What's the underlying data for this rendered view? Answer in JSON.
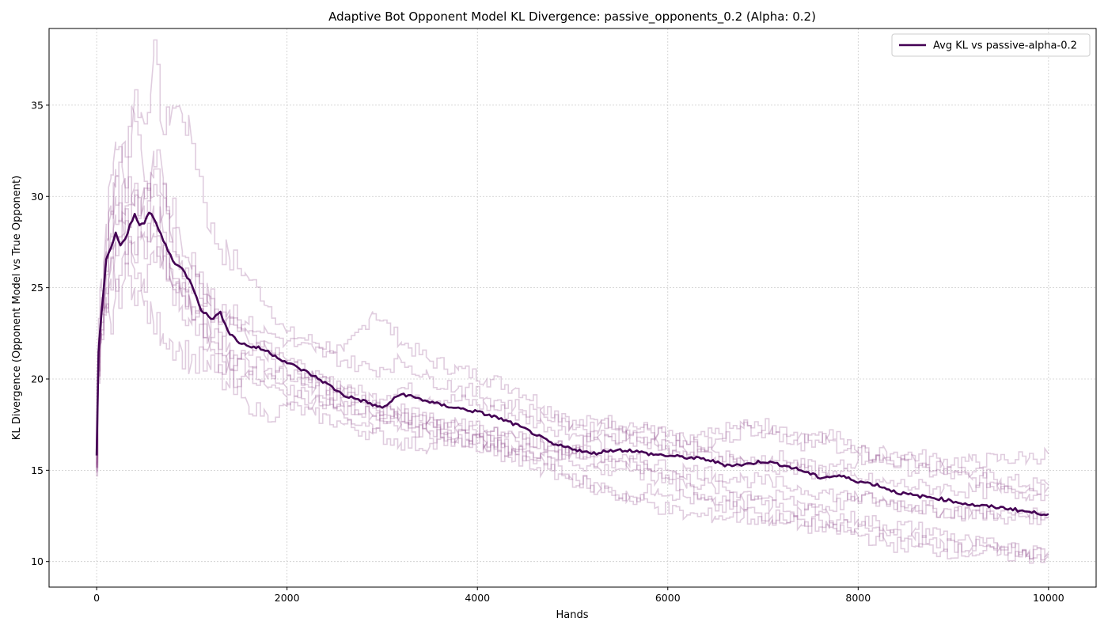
{
  "chart_data": {
    "type": "line",
    "title": "Adaptive Bot Opponent Model KL Divergence: passive_opponents_0.2 (Alpha: 0.2)",
    "xlabel": "Hands",
    "ylabel": "KL Divergence (Opponent Model vs True Opponent)",
    "xlim": [
      -500,
      10500
    ],
    "ylim": [
      8.6,
      39.2
    ],
    "xticks": [
      0,
      2000,
      4000,
      6000,
      8000,
      10000
    ],
    "yticks": [
      10,
      15,
      20,
      25,
      30,
      35
    ],
    "grid": true,
    "legend_position": "top-right",
    "colors": {
      "average": "#440154",
      "runs": "#8e4a8c"
    },
    "series": [
      {
        "name": "Avg KL vs passive-alpha-0.2",
        "role": "average",
        "x": [
          0,
          20,
          50,
          100,
          150,
          200,
          250,
          300,
          350,
          400,
          450,
          500,
          550,
          600,
          650,
          700,
          800,
          900,
          1000,
          1100,
          1200,
          1300,
          1400,
          1500,
          1600,
          1700,
          1800,
          1900,
          2000,
          2200,
          2400,
          2600,
          2800,
          3000,
          3200,
          3400,
          3600,
          3800,
          4000,
          4200,
          4400,
          4600,
          4800,
          5000,
          5200,
          5400,
          5600,
          5800,
          6000,
          6200,
          6400,
          6600,
          6800,
          7000,
          7200,
          7400,
          7600,
          7800,
          8000,
          8200,
          8400,
          8600,
          8800,
          9000,
          9200,
          9400,
          9600,
          9800,
          10000
        ],
        "y": [
          15.9,
          21.5,
          23.5,
          26.5,
          27.2,
          28.0,
          27.3,
          27.6,
          28.4,
          29.0,
          28.5,
          28.6,
          29.1,
          28.8,
          28.2,
          27.6,
          26.5,
          26.0,
          25.2,
          23.8,
          23.3,
          23.6,
          22.5,
          22.0,
          21.8,
          21.7,
          21.5,
          21.2,
          20.9,
          20.4,
          19.8,
          19.1,
          18.8,
          18.4,
          19.2,
          18.9,
          18.6,
          18.4,
          18.2,
          17.9,
          17.5,
          17.0,
          16.4,
          16.2,
          15.9,
          16.1,
          16.1,
          15.9,
          15.8,
          15.7,
          15.6,
          15.3,
          15.3,
          15.5,
          15.3,
          15.0,
          14.6,
          14.7,
          14.4,
          14.2,
          13.8,
          13.6,
          13.5,
          13.3,
          13.1,
          13.0,
          12.9,
          12.7,
          12.6
        ]
      },
      {
        "name": "",
        "role": "run",
        "x": [
          0,
          20,
          50,
          100,
          150,
          200,
          300,
          400,
          500,
          600,
          700,
          800,
          900,
          1000,
          1200,
          1400,
          1600,
          1800,
          2000,
          2300,
          2600,
          2900,
          3200,
          3500,
          3800,
          4100,
          4400,
          4700,
          5000,
          5300,
          5600,
          5900,
          6200,
          6500,
          6800,
          7100,
          7400,
          7700,
          8000,
          8300,
          8600,
          8900,
          9200,
          9500,
          9800,
          10000
        ],
        "y": [
          15.7,
          22.0,
          24.0,
          28.5,
          31.0,
          33.0,
          30.5,
          35.5,
          34.0,
          37.7,
          33.5,
          35.0,
          34.5,
          33.0,
          28.0,
          26.5,
          25.5,
          24.0,
          22.5,
          22.0,
          21.5,
          23.7,
          22.0,
          21.0,
          20.5,
          20.0,
          19.5,
          18.5,
          17.5,
          17.7,
          17.5,
          17.0,
          16.5,
          17.0,
          17.5,
          17.0,
          16.5,
          17.0,
          16.0,
          15.7,
          15.5,
          15.2,
          14.8,
          14.5,
          14.2,
          14.2
        ]
      },
      {
        "name": "",
        "role": "run",
        "x": [
          0,
          20,
          50,
          100,
          150,
          200,
          300,
          400,
          500,
          600,
          700,
          800,
          900,
          1000,
          1200,
          1400,
          1600,
          1800,
          2000,
          2300,
          2600,
          2900,
          3200,
          3500,
          3800,
          4100,
          4400,
          4700,
          5000,
          5300,
          5600,
          5900,
          6200,
          6500,
          6800,
          7100,
          7400,
          7700,
          8000,
          8300,
          8600,
          8900,
          9200,
          9500,
          9800,
          10000
        ],
        "y": [
          15.6,
          20.5,
          23.0,
          25.0,
          26.5,
          27.5,
          29.0,
          30.5,
          29.5,
          31.0,
          30.0,
          27.5,
          26.0,
          25.0,
          24.0,
          23.5,
          22.5,
          22.0,
          21.0,
          20.0,
          19.5,
          19.0,
          19.5,
          19.0,
          18.8,
          18.5,
          18.0,
          17.5,
          17.0,
          16.5,
          16.8,
          16.3,
          16.0,
          16.5,
          17.3,
          17.4,
          17.0,
          16.5,
          16.0,
          15.5,
          15.0,
          14.8,
          14.5,
          14.3,
          14.0,
          14.1
        ]
      },
      {
        "name": "",
        "role": "run",
        "x": [
          0,
          20,
          50,
          100,
          150,
          200,
          300,
          400,
          500,
          600,
          700,
          800,
          900,
          1000,
          1200,
          1400,
          1600,
          1800,
          2000,
          2300,
          2600,
          2900,
          3200,
          3500,
          3800,
          4100,
          4400,
          4700,
          5000,
          5300,
          5600,
          5900,
          6200,
          6500,
          6800,
          7100,
          7400,
          7700,
          8000,
          8300,
          8600,
          8900,
          9200,
          9500,
          9800,
          10000
        ],
        "y": [
          16.0,
          21.0,
          22.5,
          24.5,
          26.0,
          25.0,
          27.0,
          26.0,
          25.5,
          27.0,
          26.0,
          25.0,
          24.5,
          23.5,
          22.0,
          21.0,
          20.5,
          20.0,
          19.5,
          19.0,
          18.0,
          17.5,
          18.0,
          17.5,
          17.0,
          16.5,
          16.0,
          15.8,
          16.0,
          17.5,
          17.2,
          17.0,
          16.6,
          16.0,
          15.5,
          15.8,
          15.2,
          15.0,
          15.5,
          16.0,
          15.8,
          15.5,
          15.5,
          15.6,
          15.7,
          15.9
        ]
      },
      {
        "name": "",
        "role": "run",
        "x": [
          0,
          20,
          50,
          100,
          150,
          200,
          300,
          400,
          500,
          600,
          700,
          800,
          900,
          1000,
          1200,
          1400,
          1600,
          1800,
          2000,
          2300,
          2600,
          2900,
          3200,
          3500,
          3800,
          4100,
          4400,
          4700,
          5000,
          5300,
          5600,
          5900,
          6200,
          6500,
          6800,
          7100,
          7400,
          7700,
          8000,
          8300,
          8600,
          8900,
          9200,
          9500,
          9800,
          10000
        ],
        "y": [
          15.5,
          20.0,
          22.0,
          23.5,
          23.0,
          24.5,
          25.5,
          25.0,
          24.0,
          23.0,
          22.5,
          22.0,
          21.5,
          21.0,
          20.5,
          19.5,
          18.5,
          18.0,
          18.5,
          18.0,
          17.5,
          17.0,
          16.5,
          16.3,
          16.8,
          16.5,
          16.0,
          15.5,
          14.5,
          14.0,
          13.5,
          14.0,
          13.5,
          13.0,
          12.8,
          12.5,
          12.3,
          12.0,
          11.8,
          11.5,
          11.2,
          11.0,
          10.8,
          10.6,
          10.5,
          10.4
        ]
      },
      {
        "name": "",
        "role": "run",
        "x": [
          0,
          20,
          50,
          100,
          150,
          200,
          300,
          400,
          500,
          600,
          700,
          800,
          900,
          1000,
          1200,
          1400,
          1600,
          1800,
          2000,
          2300,
          2600,
          2900,
          3200,
          3500,
          3800,
          4100,
          4400,
          4700,
          5000,
          5300,
          5600,
          5900,
          6200,
          6500,
          6800,
          7100,
          7400,
          7700,
          8000,
          8300,
          8600,
          8900,
          9200,
          9500,
          9800,
          10000
        ],
        "y": [
          15.8,
          21.5,
          24.5,
          27.0,
          29.0,
          30.0,
          28.5,
          27.5,
          28.0,
          29.5,
          28.0,
          26.0,
          25.0,
          24.0,
          22.5,
          22.0,
          21.5,
          21.0,
          20.5,
          19.5,
          18.5,
          18.0,
          17.5,
          17.0,
          16.8,
          16.5,
          16.2,
          16.0,
          15.5,
          15.0,
          15.2,
          15.0,
          14.5,
          14.0,
          13.8,
          13.5,
          13.2,
          13.0,
          13.5,
          13.3,
          13.0,
          12.8,
          12.7,
          12.6,
          12.5,
          12.4
        ]
      },
      {
        "name": "",
        "role": "run",
        "x": [
          0,
          20,
          50,
          100,
          150,
          200,
          300,
          400,
          500,
          600,
          700,
          800,
          900,
          1000,
          1200,
          1400,
          1600,
          1800,
          2000,
          2300,
          2600,
          2900,
          3200,
          3500,
          3800,
          4100,
          4400,
          4700,
          5000,
          5300,
          5600,
          5900,
          6200,
          6500,
          6800,
          7100,
          7400,
          7700,
          8000,
          8300,
          8600,
          8900,
          9200,
          9500,
          9800,
          10000
        ],
        "y": [
          15.4,
          20.5,
          23.5,
          26.0,
          27.5,
          29.0,
          31.0,
          29.5,
          30.0,
          32.5,
          31.0,
          29.0,
          27.0,
          26.0,
          24.0,
          23.0,
          22.0,
          21.5,
          21.0,
          20.0,
          19.5,
          18.5,
          18.2,
          17.8,
          17.5,
          17.2,
          16.8,
          16.5,
          16.0,
          15.5,
          15.0,
          14.5,
          14.0,
          13.5,
          13.3,
          13.0,
          12.8,
          12.5,
          12.3,
          12.0,
          11.8,
          11.5,
          11.0,
          10.8,
          10.6,
          10.5
        ]
      },
      {
        "name": "",
        "role": "run",
        "x": [
          0,
          20,
          50,
          100,
          150,
          200,
          300,
          400,
          500,
          600,
          700,
          800,
          900,
          1000,
          1200,
          1400,
          1600,
          1800,
          2000,
          2300,
          2600,
          2900,
          3200,
          3500,
          3800,
          4100,
          4400,
          4700,
          5000,
          5300,
          5600,
          5900,
          6200,
          6500,
          6800,
          7100,
          7400,
          7700,
          8000,
          8300,
          8600,
          8900,
          9200,
          9500,
          9800,
          10000
        ],
        "y": [
          15.9,
          21.0,
          23.0,
          25.5,
          28.0,
          31.5,
          33.0,
          34.5,
          31.0,
          30.0,
          29.0,
          27.5,
          26.5,
          25.5,
          24.5,
          23.8,
          23.0,
          22.5,
          22.0,
          21.5,
          21.0,
          20.5,
          21.0,
          20.0,
          19.5,
          19.0,
          18.5,
          18.0,
          17.5,
          17.0,
          16.8,
          16.5,
          16.0,
          15.7,
          15.5,
          15.2,
          15.0,
          14.8,
          14.5,
          14.3,
          14.1,
          14.0,
          13.9,
          13.8,
          13.7,
          13.6
        ]
      },
      {
        "name": "",
        "role": "run",
        "x": [
          0,
          20,
          50,
          100,
          150,
          200,
          300,
          400,
          500,
          600,
          700,
          800,
          900,
          1000,
          1200,
          1400,
          1600,
          1800,
          2000,
          2300,
          2600,
          2900,
          3200,
          3500,
          3800,
          4100,
          4400,
          4700,
          5000,
          5300,
          5600,
          5900,
          6200,
          6500,
          6800,
          7100,
          7400,
          7700,
          8000,
          8300,
          8600,
          8900,
          9200,
          9500,
          9800,
          10000
        ],
        "y": [
          16.1,
          22.5,
          25.5,
          27.0,
          29.5,
          30.5,
          27.5,
          26.5,
          27.5,
          28.0,
          26.5,
          25.0,
          24.0,
          23.0,
          21.5,
          20.5,
          20.0,
          19.5,
          19.0,
          18.8,
          18.5,
          18.0,
          17.5,
          17.0,
          16.5,
          16.0,
          15.5,
          15.0,
          14.5,
          14.0,
          13.5,
          13.0,
          12.5,
          12.5,
          12.4,
          12.3,
          12.0,
          11.8,
          11.5,
          11.0,
          10.8,
          10.6,
          10.5,
          10.4,
          10.3,
          10.3
        ]
      },
      {
        "name": "",
        "role": "run",
        "x": [
          0,
          20,
          50,
          100,
          150,
          200,
          300,
          400,
          500,
          600,
          700,
          800,
          900,
          1000,
          1200,
          1400,
          1600,
          1800,
          2000,
          2300,
          2600,
          2900,
          3200,
          3500,
          3800,
          4100,
          4400,
          4700,
          5000,
          5300,
          5600,
          5900,
          6200,
          6500,
          6800,
          7100,
          7400,
          7700,
          8000,
          8300,
          8600,
          8900,
          9200,
          9500,
          9800,
          10000
        ],
        "y": [
          15.6,
          20.0,
          22.5,
          24.0,
          25.5,
          27.0,
          28.0,
          29.5,
          30.5,
          28.5,
          26.5,
          25.5,
          24.5,
          23.5,
          22.5,
          21.5,
          21.0,
          20.5,
          20.0,
          19.5,
          19.0,
          18.5,
          18.0,
          17.8,
          17.5,
          17.0,
          16.8,
          16.5,
          16.0,
          15.8,
          15.5,
          15.3,
          15.0,
          14.8,
          14.5,
          14.3,
          14.0,
          13.7,
          13.5,
          13.2,
          13.0,
          12.8,
          12.6,
          12.5,
          12.4,
          12.4
        ]
      }
    ]
  }
}
